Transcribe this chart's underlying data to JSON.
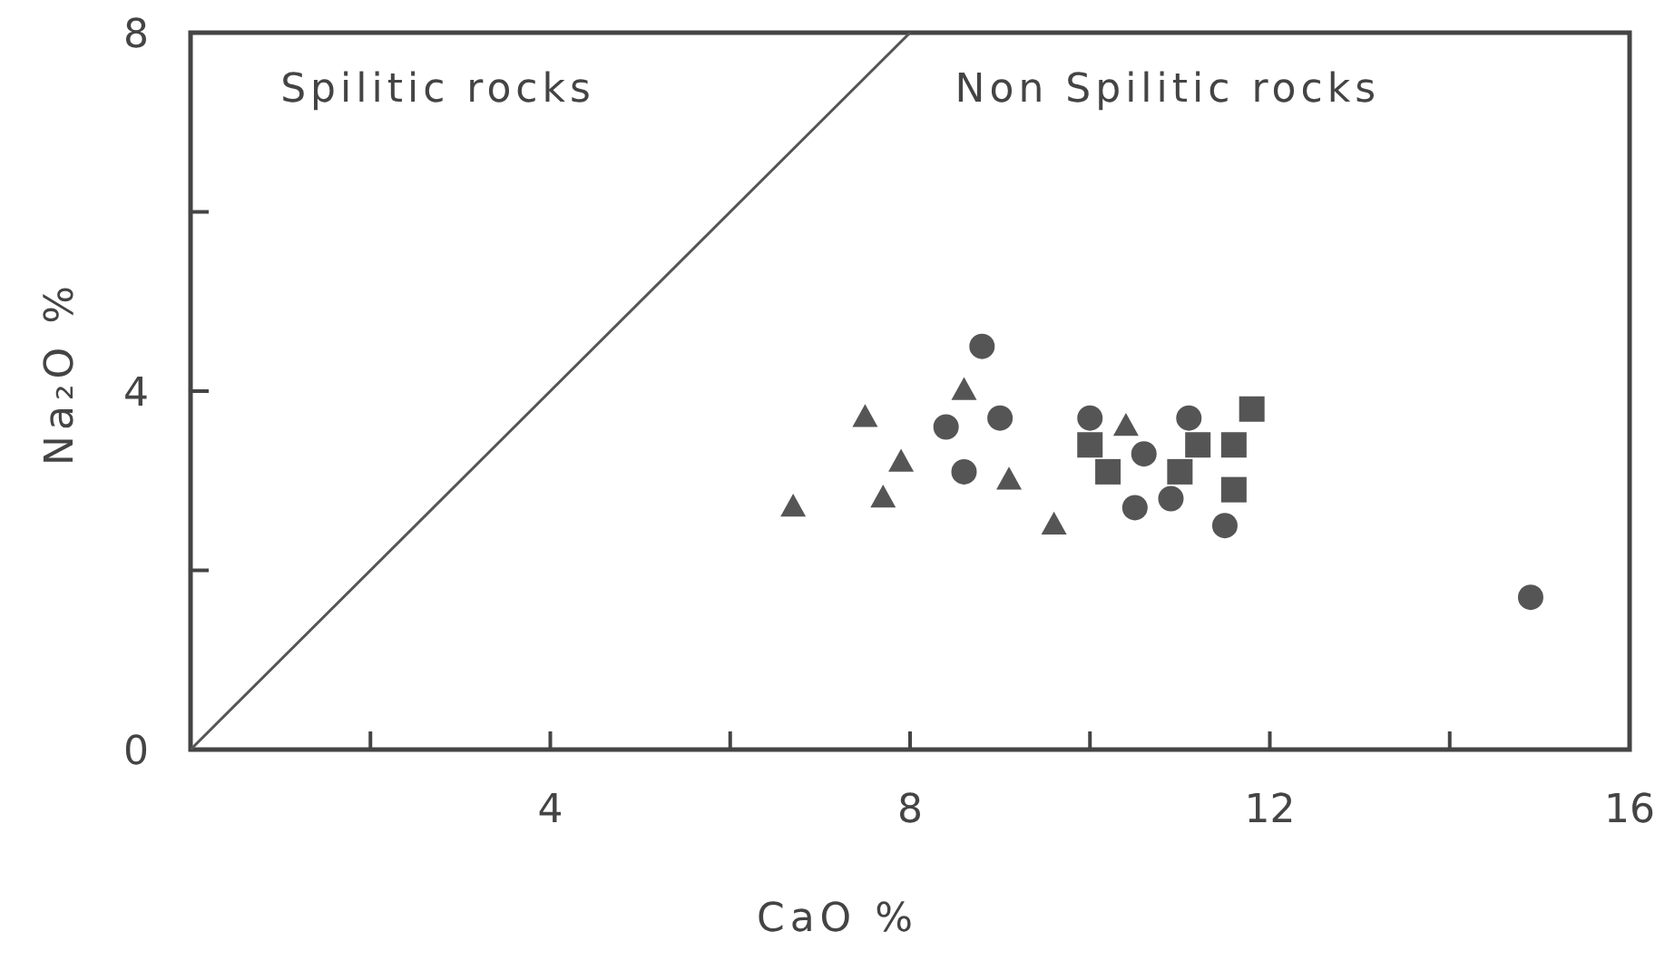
{
  "chart_data": {
    "type": "scatter",
    "xlabel": "CaO %",
    "ylabel": "Na₂O %",
    "xlim": [
      0,
      16
    ],
    "ylim": [
      0,
      8
    ],
    "xticks": [
      {
        "value": 2,
        "label": null
      },
      4,
      {
        "value": 6,
        "label": null
      },
      8,
      {
        "value": 10,
        "label": null
      },
      12,
      {
        "value": 14,
        "label": null
      },
      16
    ],
    "yticks": [
      0,
      {
        "value": 2,
        "label": null
      },
      4,
      {
        "value": 6,
        "label": null
      },
      8
    ],
    "grid": false,
    "annotations": [
      "Spilitic rocks",
      "Non Spilitic rocks"
    ],
    "series": [
      {
        "type": "line",
        "color": "#555555",
        "marker": "none",
        "x": [
          0,
          8
        ],
        "values": [
          0,
          8
        ]
      },
      {
        "color": "#555555",
        "marker": "triangle",
        "x": [
          6.7,
          7.5,
          7.9,
          7.7,
          8.6,
          9.1,
          9.6,
          10.4
        ],
        "values": [
          2.7,
          3.7,
          3.2,
          2.8,
          4.0,
          3.0,
          2.5,
          3.6
        ]
      },
      {
        "color": "#555555",
        "marker": "circle",
        "x": [
          8.8,
          8.4,
          9.0,
          8.6,
          10.0,
          10.6,
          10.5,
          10.9,
          11.1,
          11.5,
          14.9
        ],
        "values": [
          4.5,
          3.6,
          3.7,
          3.1,
          3.7,
          3.3,
          2.7,
          2.8,
          3.7,
          2.5,
          1.7
        ]
      },
      {
        "color": "#555555",
        "marker": "square",
        "x": [
          10.0,
          10.2,
          11.0,
          11.2,
          11.6,
          11.8,
          11.6
        ],
        "values": [
          3.4,
          3.1,
          3.1,
          3.4,
          3.4,
          3.8,
          2.9
        ]
      }
    ]
  }
}
